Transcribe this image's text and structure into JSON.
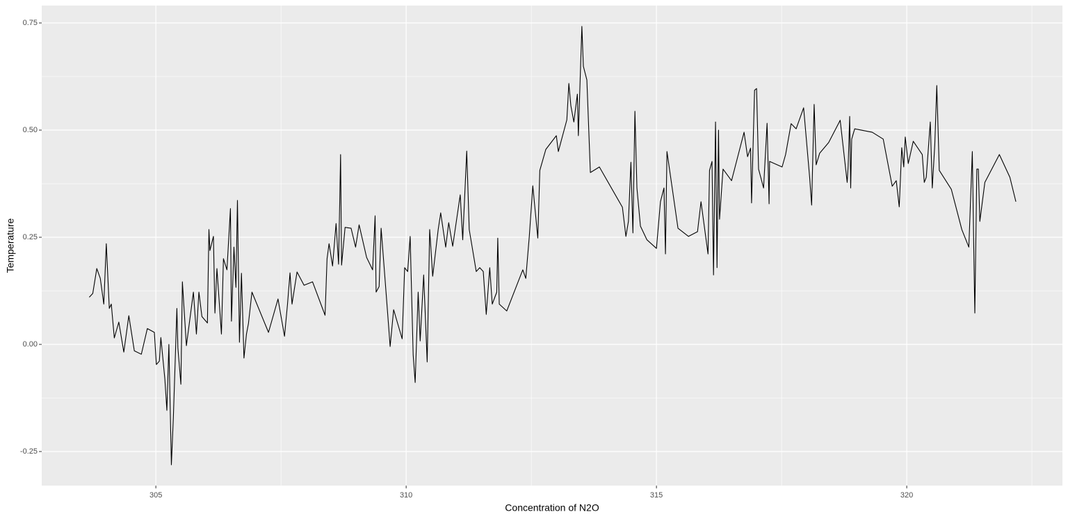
{
  "chart_data": {
    "type": "line",
    "x_label": "Concentration of N2O",
    "y_label": "Temperature",
    "color": "#000000",
    "grid": true,
    "xlim": [
      302.72,
      323.11
    ],
    "ylim": [
      -0.3295,
      0.7906
    ],
    "xticks": [
      305,
      310,
      315,
      320
    ],
    "yticks": [
      {
        "value": -0.25,
        "label": "-0.25"
      },
      {
        "value": 0,
        "label": "0.00"
      },
      0.25,
      {
        "value": 0.5,
        "label": "0.50"
      },
      0.75
    ],
    "x": [
      303.67,
      303.74,
      303.82,
      303.89,
      303.96,
      304.01,
      304.07,
      304.11,
      304.17,
      304.26,
      304.36,
      304.46,
      304.57,
      304.71,
      304.83,
      304.97,
      305.01,
      305.07,
      305.1,
      305.18,
      305.22,
      305.26,
      305.31,
      305.35,
      305.42,
      305.44,
      305.5,
      305.53,
      305.61,
      305.75,
      305.81,
      305.86,
      305.92,
      306.03,
      306.06,
      306.08,
      306.15,
      306.18,
      306.22,
      306.31,
      306.35,
      306.42,
      306.49,
      306.51,
      306.56,
      306.6,
      306.63,
      306.67,
      306.71,
      306.76,
      306.81,
      306.85,
      306.92,
      307.25,
      307.44,
      307.57,
      307.63,
      307.68,
      307.72,
      307.82,
      307.96,
      308.13,
      308.38,
      308.42,
      308.46,
      308.53,
      308.6,
      308.65,
      308.69,
      308.71,
      308.78,
      308.9,
      308.99,
      309.06,
      309.21,
      309.33,
      309.38,
      309.4,
      309.46,
      309.5,
      309.56,
      309.63,
      309.68,
      309.75,
      309.92,
      309.97,
      310.03,
      310.08,
      310.14,
      310.18,
      310.24,
      310.28,
      310.35,
      310.42,
      310.47,
      310.53,
      310.64,
      310.69,
      310.79,
      310.85,
      310.93,
      311.08,
      311.13,
      311.21,
      311.26,
      311.4,
      311.47,
      311.54,
      311.6,
      311.67,
      311.72,
      311.81,
      311.83,
      311.86,
      312.01,
      312.33,
      312.39,
      312.46,
      312.53,
      312.63,
      312.67,
      312.79,
      313.0,
      313.04,
      313.21,
      313.25,
      313.29,
      313.35,
      313.42,
      313.44,
      313.51,
      313.54,
      313.61,
      313.68,
      313.86,
      314.32,
      314.39,
      314.44,
      314.49,
      314.53,
      314.57,
      314.61,
      314.68,
      314.81,
      315.0,
      315.08,
      315.15,
      315.18,
      315.21,
      315.43,
      315.64,
      315.82,
      315.89,
      316.03,
      316.06,
      316.11,
      316.14,
      316.18,
      316.21,
      316.24,
      316.26,
      316.33,
      316.5,
      316.75,
      316.82,
      316.88,
      316.9,
      316.96,
      317.0,
      317.04,
      317.14,
      317.21,
      317.25,
      317.26,
      317.51,
      317.58,
      317.69,
      317.79,
      317.94,
      318.06,
      318.1,
      318.15,
      318.19,
      318.26,
      318.44,
      318.67,
      318.81,
      318.83,
      318.86,
      318.88,
      318.9,
      318.96,
      319.31,
      319.53,
      319.71,
      319.79,
      319.85,
      319.9,
      319.94,
      319.97,
      320.03,
      320.13,
      320.31,
      320.35,
      320.39,
      320.47,
      320.51,
      320.56,
      320.6,
      320.65,
      320.89,
      321.1,
      321.24,
      321.31,
      321.35,
      321.36,
      321.4,
      321.43,
      321.46,
      321.56,
      321.85,
      322.06,
      322.18
    ],
    "values": [
      0.11,
      0.119,
      0.177,
      0.154,
      0.094,
      0.235,
      0.084,
      0.094,
      0.015,
      0.052,
      -0.018,
      0.067,
      -0.015,
      -0.023,
      0.037,
      0.028,
      -0.047,
      -0.039,
      0.016,
      -0.081,
      -0.154,
      0.0,
      -0.281,
      -0.17,
      0.084,
      -0.008,
      -0.093,
      0.146,
      -0.003,
      0.122,
      0.024,
      0.122,
      0.065,
      0.05,
      0.268,
      0.219,
      0.252,
      0.073,
      0.177,
      0.024,
      0.2,
      0.174,
      0.317,
      0.054,
      0.227,
      0.133,
      0.336,
      0.005,
      0.166,
      -0.032,
      0.024,
      0.049,
      0.122,
      0.028,
      0.106,
      0.019,
      0.094,
      0.167,
      0.094,
      0.169,
      0.138,
      0.146,
      0.068,
      0.2,
      0.235,
      0.183,
      0.282,
      0.187,
      0.443,
      0.185,
      0.273,
      0.271,
      0.227,
      0.279,
      0.203,
      0.174,
      0.3,
      0.122,
      0.135,
      0.271,
      0.18,
      0.073,
      -0.005,
      0.081,
      0.013,
      0.179,
      0.17,
      0.252,
      -0.024,
      -0.089,
      0.122,
      0.008,
      0.162,
      -0.041,
      0.268,
      0.159,
      0.268,
      0.307,
      0.227,
      0.284,
      0.229,
      0.349,
      0.244,
      0.451,
      0.268,
      0.17,
      0.179,
      0.17,
      0.07,
      0.179,
      0.094,
      0.122,
      0.248,
      0.094,
      0.078,
      0.174,
      0.154,
      0.252,
      0.37,
      0.248,
      0.406,
      0.455,
      0.487,
      0.45,
      0.524,
      0.609,
      0.557,
      0.519,
      0.584,
      0.487,
      0.742,
      0.649,
      0.617,
      0.401,
      0.414,
      0.32,
      0.252,
      0.287,
      0.425,
      0.26,
      0.544,
      0.365,
      0.276,
      0.244,
      0.224,
      0.333,
      0.365,
      0.211,
      0.45,
      0.271,
      0.252,
      0.263,
      0.333,
      0.211,
      0.406,
      0.427,
      0.162,
      0.519,
      0.179,
      0.5,
      0.292,
      0.409,
      0.382,
      0.495,
      0.438,
      0.458,
      0.33,
      0.593,
      0.597,
      0.409,
      0.365,
      0.516,
      0.328,
      0.427,
      0.414,
      0.443,
      0.515,
      0.503,
      0.552,
      0.39,
      0.325,
      0.56,
      0.419,
      0.446,
      0.471,
      0.523,
      0.378,
      0.417,
      0.532,
      0.365,
      0.479,
      0.503,
      0.495,
      0.479,
      0.369,
      0.382,
      0.321,
      0.459,
      0.414,
      0.484,
      0.422,
      0.474,
      0.443,
      0.378,
      0.39,
      0.519,
      0.365,
      0.466,
      0.604,
      0.406,
      0.362,
      0.268,
      0.227,
      0.45,
      0.138,
      0.073,
      0.409,
      0.409,
      0.287,
      0.378,
      0.443,
      0.39,
      0.333
    ]
  }
}
